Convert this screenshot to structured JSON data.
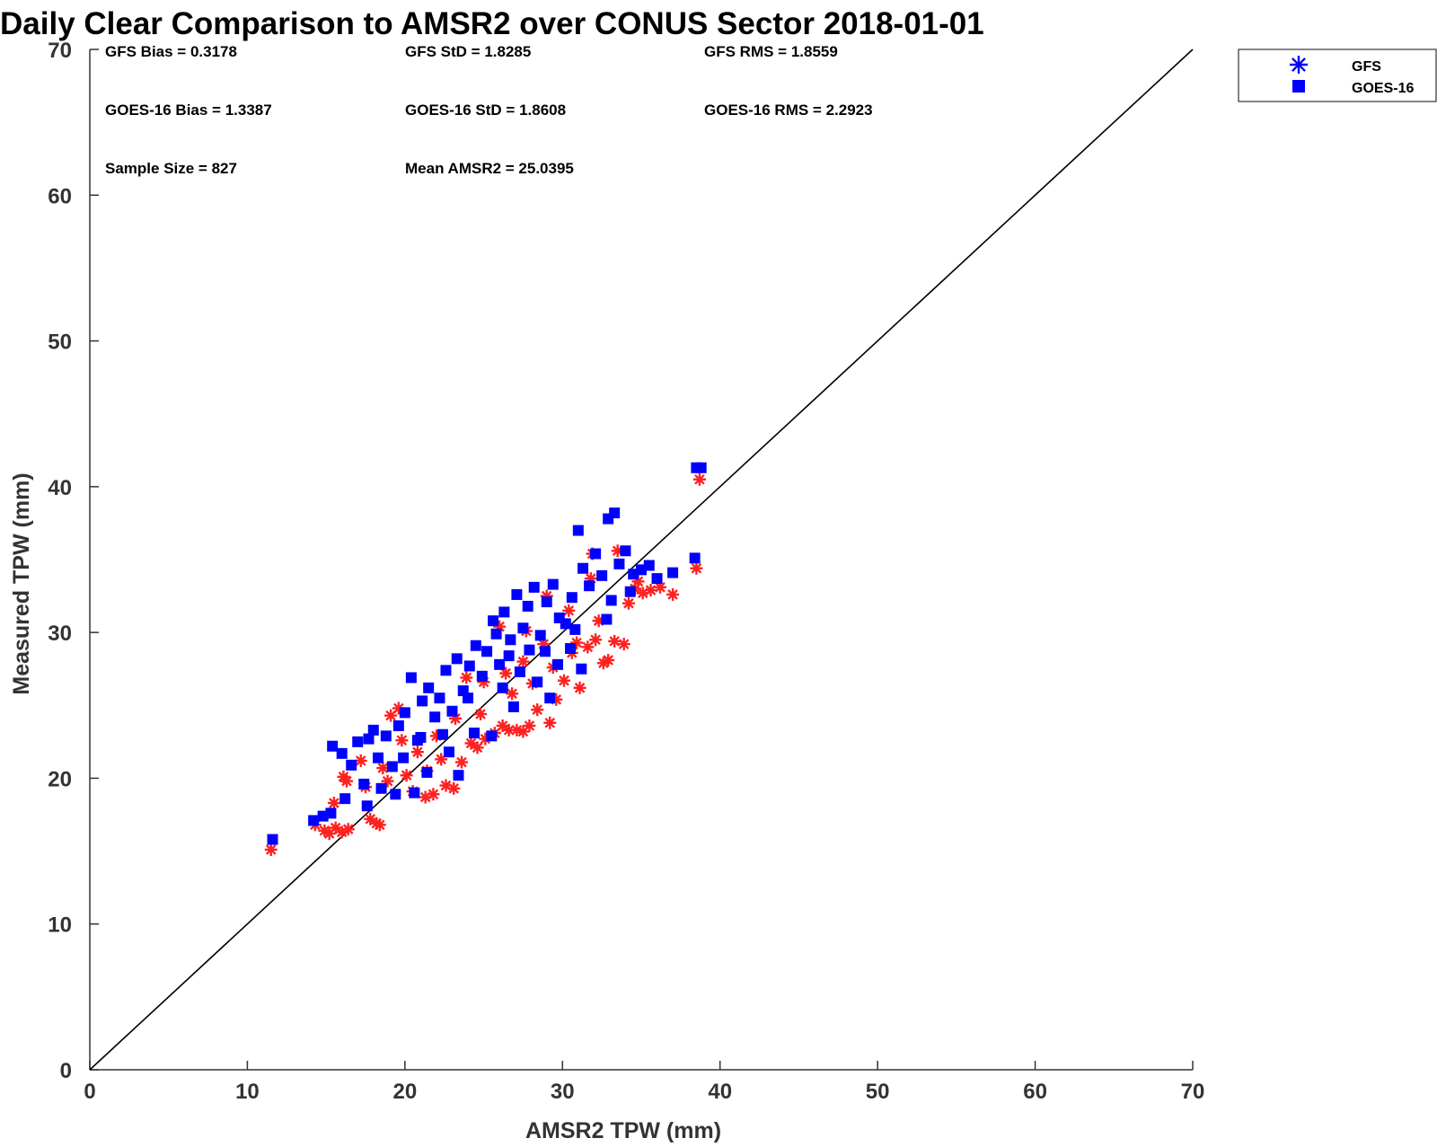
{
  "chart_data": {
    "type": "scatter",
    "title": "Daily Clear Comparison to AMSR2 over CONUS Sector 2018-01-01",
    "xlabel": "AMSR2 TPW (mm)",
    "ylabel": "Measured TPW (mm)",
    "xlim": [
      0,
      70
    ],
    "ylim": [
      0,
      70
    ],
    "xticks": [
      "0",
      "10",
      "20",
      "30",
      "40",
      "50",
      "60",
      "70"
    ],
    "yticks": [
      "0",
      "10",
      "20",
      "30",
      "40",
      "50",
      "60",
      "70"
    ],
    "grid": false,
    "reference_line": "y = x",
    "legend_position": "outside-top-right",
    "stats": [
      "GFS Bias = 0.3178",
      "GFS StD = 1.8285",
      "GFS RMS = 1.8559",
      "GOES-16 Bias = 1.3387",
      "GOES-16 StD = 1.8608",
      "GOES-16 RMS = 2.2923",
      "Sample Size = 827",
      "Mean AMSR2 = 25.0395"
    ],
    "series": [
      {
        "name": "GFS",
        "marker": "asterisk",
        "color": "#ff2020",
        "legend_color": "#0000ff",
        "points": [
          [
            11.5,
            15.1
          ],
          [
            14.3,
            16.8
          ],
          [
            14.9,
            16.4
          ],
          [
            15.2,
            16.2
          ],
          [
            15.6,
            16.6
          ],
          [
            16.0,
            16.3
          ],
          [
            16.4,
            16.5
          ],
          [
            15.5,
            18.3
          ],
          [
            16.1,
            20.1
          ],
          [
            16.3,
            19.8
          ],
          [
            17.2,
            21.2
          ],
          [
            17.8,
            17.2
          ],
          [
            18.2,
            16.9
          ],
          [
            18.4,
            16.8
          ],
          [
            18.9,
            19.8
          ],
          [
            19.1,
            24.3
          ],
          [
            19.6,
            24.8
          ],
          [
            20.1,
            20.2
          ],
          [
            20.5,
            19.1
          ],
          [
            21.3,
            18.7
          ],
          [
            21.8,
            18.9
          ],
          [
            22.3,
            21.3
          ],
          [
            22.6,
            19.5
          ],
          [
            23.1,
            19.3
          ],
          [
            23.6,
            21.1
          ],
          [
            24.2,
            22.4
          ],
          [
            24.6,
            22.1
          ],
          [
            25.1,
            22.7
          ],
          [
            25.7,
            23.1
          ],
          [
            26.2,
            23.6
          ],
          [
            26.6,
            23.3
          ],
          [
            27.1,
            23.3
          ],
          [
            27.5,
            23.2
          ],
          [
            27.9,
            23.6
          ],
          [
            28.4,
            24.7
          ],
          [
            29.2,
            23.8
          ],
          [
            29.6,
            25.4
          ],
          [
            30.1,
            26.7
          ],
          [
            30.6,
            28.6
          ],
          [
            31.1,
            26.2
          ],
          [
            31.6,
            29.0
          ],
          [
            32.1,
            29.5
          ],
          [
            32.6,
            27.9
          ],
          [
            32.9,
            28.1
          ],
          [
            33.3,
            29.4
          ],
          [
            33.9,
            29.2
          ],
          [
            34.2,
            32.0
          ],
          [
            34.6,
            33.0
          ],
          [
            35.1,
            32.7
          ],
          [
            35.6,
            32.9
          ],
          [
            36.2,
            33.1
          ],
          [
            37.0,
            32.6
          ],
          [
            38.5,
            34.4
          ],
          [
            38.7,
            40.5
          ],
          [
            26.0,
            30.4
          ],
          [
            27.5,
            28.0
          ],
          [
            28.8,
            29.2
          ],
          [
            30.4,
            31.5
          ],
          [
            31.8,
            33.7
          ],
          [
            33.5,
            35.6
          ],
          [
            34.8,
            33.5
          ],
          [
            25.0,
            26.6
          ],
          [
            23.2,
            24.1
          ],
          [
            22.0,
            22.9
          ],
          [
            20.8,
            21.8
          ],
          [
            21.4,
            20.5
          ],
          [
            24.8,
            24.4
          ],
          [
            26.8,
            25.8
          ],
          [
            28.1,
            26.5
          ],
          [
            29.4,
            27.6
          ],
          [
            30.9,
            29.3
          ],
          [
            32.3,
            30.8
          ],
          [
            29.0,
            32.5
          ],
          [
            31.9,
            35.4
          ],
          [
            19.8,
            22.6
          ],
          [
            18.6,
            20.7
          ],
          [
            17.5,
            19.4
          ],
          [
            23.9,
            26.9
          ],
          [
            26.4,
            27.2
          ],
          [
            27.7,
            30.1
          ]
        ]
      },
      {
        "name": "GOES-16",
        "marker": "square",
        "color": "#0000ff",
        "points": [
          [
            11.6,
            15.8
          ],
          [
            14.2,
            17.1
          ],
          [
            14.8,
            17.4
          ],
          [
            15.3,
            17.6
          ],
          [
            15.4,
            22.2
          ],
          [
            16.0,
            21.7
          ],
          [
            16.2,
            18.6
          ],
          [
            16.6,
            20.9
          ],
          [
            17.0,
            22.5
          ],
          [
            17.4,
            19.6
          ],
          [
            17.7,
            22.7
          ],
          [
            18.0,
            23.3
          ],
          [
            18.3,
            21.4
          ],
          [
            18.8,
            22.9
          ],
          [
            19.2,
            20.8
          ],
          [
            19.6,
            23.6
          ],
          [
            20.0,
            24.5
          ],
          [
            20.4,
            26.9
          ],
          [
            20.8,
            22.6
          ],
          [
            21.1,
            25.3
          ],
          [
            21.5,
            26.2
          ],
          [
            21.9,
            24.2
          ],
          [
            22.2,
            25.5
          ],
          [
            22.6,
            27.4
          ],
          [
            23.0,
            24.6
          ],
          [
            23.3,
            28.2
          ],
          [
            23.7,
            26.0
          ],
          [
            24.1,
            27.7
          ],
          [
            24.5,
            29.1
          ],
          [
            24.9,
            27.0
          ],
          [
            25.2,
            28.7
          ],
          [
            25.6,
            30.8
          ],
          [
            26.0,
            27.8
          ],
          [
            26.3,
            31.4
          ],
          [
            26.7,
            29.5
          ],
          [
            27.1,
            32.6
          ],
          [
            27.5,
            30.3
          ],
          [
            27.8,
            31.8
          ],
          [
            28.2,
            33.1
          ],
          [
            28.6,
            29.8
          ],
          [
            29.0,
            32.1
          ],
          [
            29.4,
            33.3
          ],
          [
            29.8,
            31.0
          ],
          [
            30.2,
            30.6
          ],
          [
            30.6,
            32.4
          ],
          [
            31.0,
            37.0
          ],
          [
            31.3,
            34.4
          ],
          [
            31.7,
            33.2
          ],
          [
            32.1,
            35.4
          ],
          [
            32.5,
            33.9
          ],
          [
            32.9,
            37.8
          ],
          [
            33.3,
            38.2
          ],
          [
            33.6,
            34.7
          ],
          [
            34.0,
            35.6
          ],
          [
            34.5,
            34.0
          ],
          [
            35.0,
            34.3
          ],
          [
            35.5,
            34.6
          ],
          [
            36.0,
            33.7
          ],
          [
            37.0,
            34.1
          ],
          [
            38.4,
            35.1
          ],
          [
            38.5,
            41.3
          ],
          [
            38.8,
            41.3
          ],
          [
            20.6,
            19.0
          ],
          [
            21.4,
            20.4
          ],
          [
            22.8,
            21.8
          ],
          [
            24.4,
            23.1
          ],
          [
            25.5,
            22.9
          ],
          [
            26.9,
            24.9
          ],
          [
            28.4,
            26.6
          ],
          [
            29.7,
            27.8
          ],
          [
            31.2,
            27.5
          ],
          [
            32.8,
            30.9
          ],
          [
            19.4,
            18.9
          ],
          [
            23.4,
            20.2
          ],
          [
            26.2,
            26.2
          ],
          [
            27.3,
            27.3
          ],
          [
            28.9,
            28.7
          ],
          [
            30.8,
            30.2
          ],
          [
            25.8,
            29.9
          ],
          [
            24.0,
            25.5
          ],
          [
            22.4,
            23.0
          ],
          [
            21.0,
            22.8
          ],
          [
            19.9,
            21.4
          ],
          [
            18.5,
            19.3
          ],
          [
            17.6,
            18.1
          ],
          [
            29.2,
            25.5
          ],
          [
            30.5,
            28.9
          ],
          [
            33.1,
            32.2
          ],
          [
            34.3,
            32.8
          ],
          [
            27.9,
            28.8
          ],
          [
            26.6,
            28.4
          ]
        ]
      }
    ]
  },
  "colors": {
    "gfs_points": "#ff2020",
    "goes_points": "#0000ff",
    "legend_marker": "#0000ff",
    "axis": "#333333",
    "reference_line": "#000000"
  }
}
